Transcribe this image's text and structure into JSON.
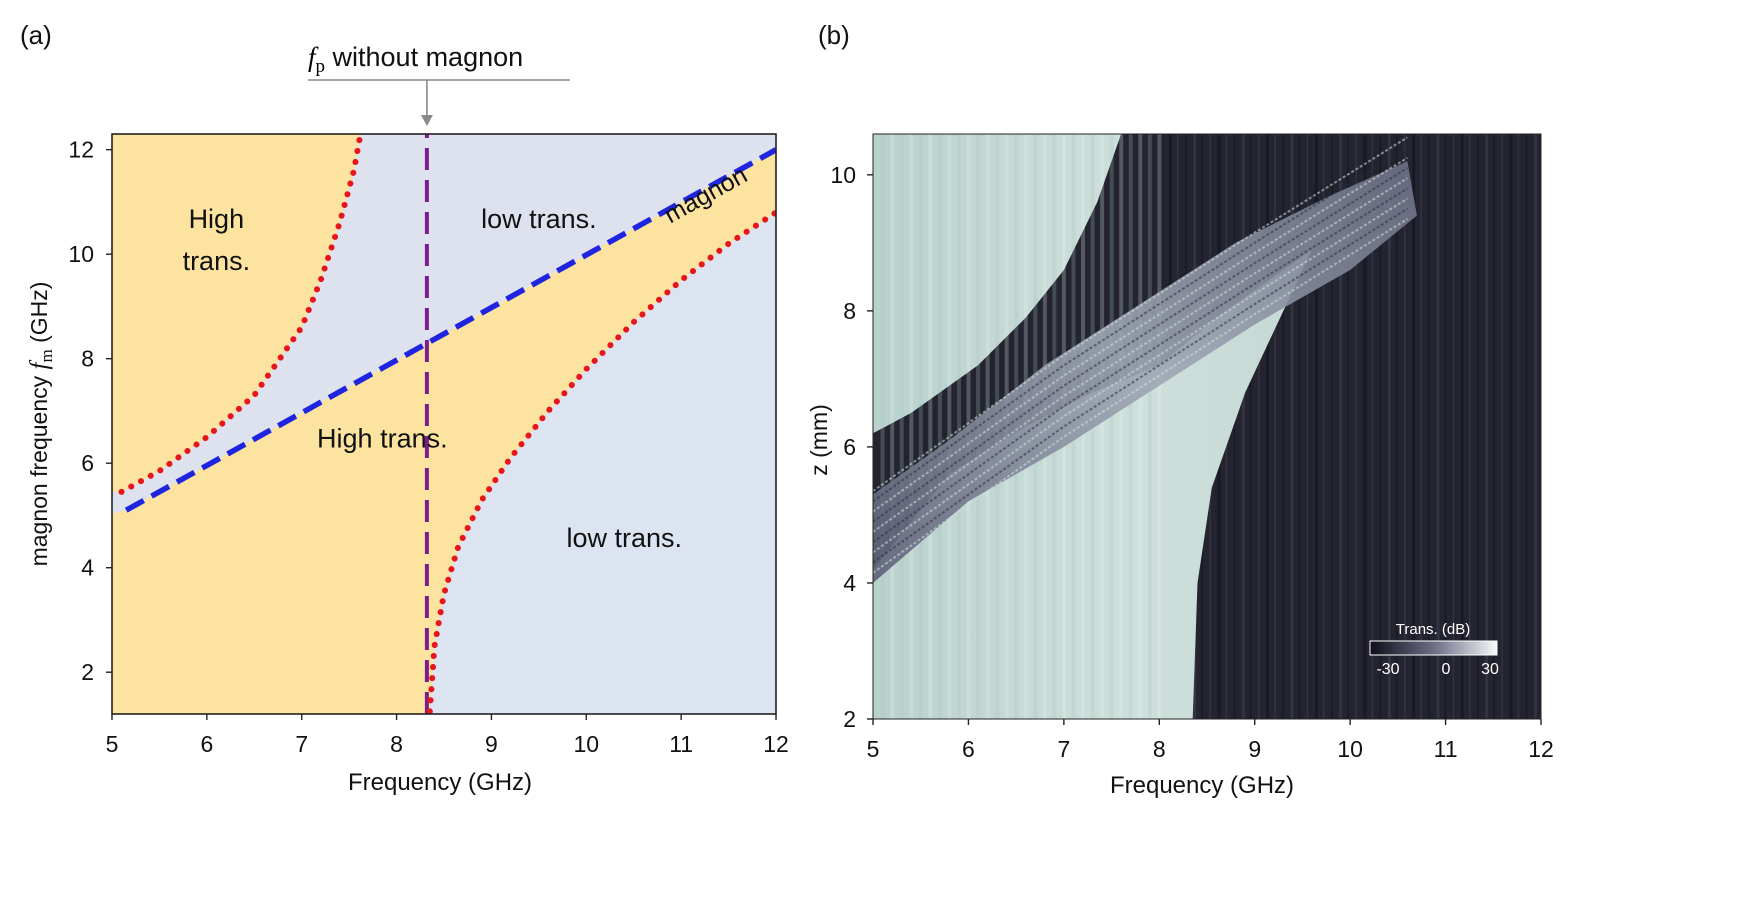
{
  "panels": {
    "a_label": "(a)",
    "b_label": "(b)"
  },
  "annotation": {
    "fp_symbol": "f",
    "fp_sub": "p",
    "fp_text": " without magnon"
  },
  "chart_data": [
    {
      "type": "line",
      "title": "",
      "xlabel": "Frequency (GHz)",
      "ylabel_prefix": "magnon frequency ",
      "ylabel_symbol": "f",
      "ylabel_sub": "m",
      "ylabel_suffix": " (GHz)",
      "xlim": [
        5,
        12
      ],
      "ylim": [
        1.2,
        12.3
      ],
      "xticks": [
        5,
        6,
        7,
        8,
        9,
        10,
        11,
        12
      ],
      "yticks": [
        2,
        4,
        6,
        8,
        10,
        12
      ],
      "fp_without_magnon": 8.32,
      "series": [
        {
          "name": "magnon",
          "style": "dashed",
          "color": "#1f24e0",
          "x": [
            5.15,
            12.0
          ],
          "y": [
            5.1,
            12.0
          ]
        },
        {
          "name": "f_p without magnon",
          "style": "dashed",
          "color": "#7b1e8e",
          "x": [
            8.32,
            8.32
          ],
          "y": [
            1.2,
            12.3
          ]
        },
        {
          "name": "upper band edge",
          "style": "dotted",
          "color": "#e8161c",
          "x": [
            5.1,
            5.5,
            6.0,
            6.5,
            7.0,
            7.2,
            7.4,
            7.55,
            7.62
          ],
          "y": [
            5.45,
            5.85,
            6.5,
            7.3,
            8.6,
            9.5,
            10.6,
            11.6,
            12.3
          ]
        },
        {
          "name": "lower band edge",
          "style": "dotted",
          "color": "#e8161c",
          "x": [
            8.35,
            8.4,
            8.5,
            8.65,
            8.9,
            9.2,
            9.6,
            10.0,
            10.5,
            11.0,
            11.5,
            12.0
          ],
          "y": [
            1.25,
            2.5,
            3.5,
            4.4,
            5.3,
            6.1,
            7.0,
            7.8,
            8.7,
            9.5,
            10.2,
            10.8
          ]
        }
      ],
      "region_labels": [
        {
          "text": "High",
          "x": 6.1,
          "y": 10.5
        },
        {
          "text": "trans.",
          "x": 6.1,
          "y": 9.7
        },
        {
          "text": "low trans.",
          "x": 9.5,
          "y": 10.5
        },
        {
          "text": "High trans.",
          "x": 7.85,
          "y": 6.3
        },
        {
          "text": "low trans.",
          "x": 10.4,
          "y": 4.4
        },
        {
          "text": "magnon",
          "x": 11.3,
          "y": 11.0
        }
      ],
      "colors": {
        "high": "#fce3a0",
        "low": "#dde2ee",
        "low_right": "#dce4f2"
      }
    },
    {
      "type": "heatmap",
      "title": "",
      "xlabel": "Frequency (GHz)",
      "ylabel": "z (mm)",
      "xlim": [
        5,
        12
      ],
      "ylim": [
        2,
        10.6
      ],
      "xticks": [
        5,
        6,
        7,
        8,
        9,
        10,
        11,
        12
      ],
      "yticks": [
        2,
        4,
        6,
        8,
        10
      ],
      "colorbar": {
        "label": "Trans. (dB)",
        "ticks": [
          "-30",
          "0",
          "30"
        ],
        "range": [
          -30,
          30
        ]
      },
      "colors": {
        "low": "#1d1e2c",
        "mid": "#4a4b5e",
        "high": "#dbe8e4"
      }
    }
  ]
}
